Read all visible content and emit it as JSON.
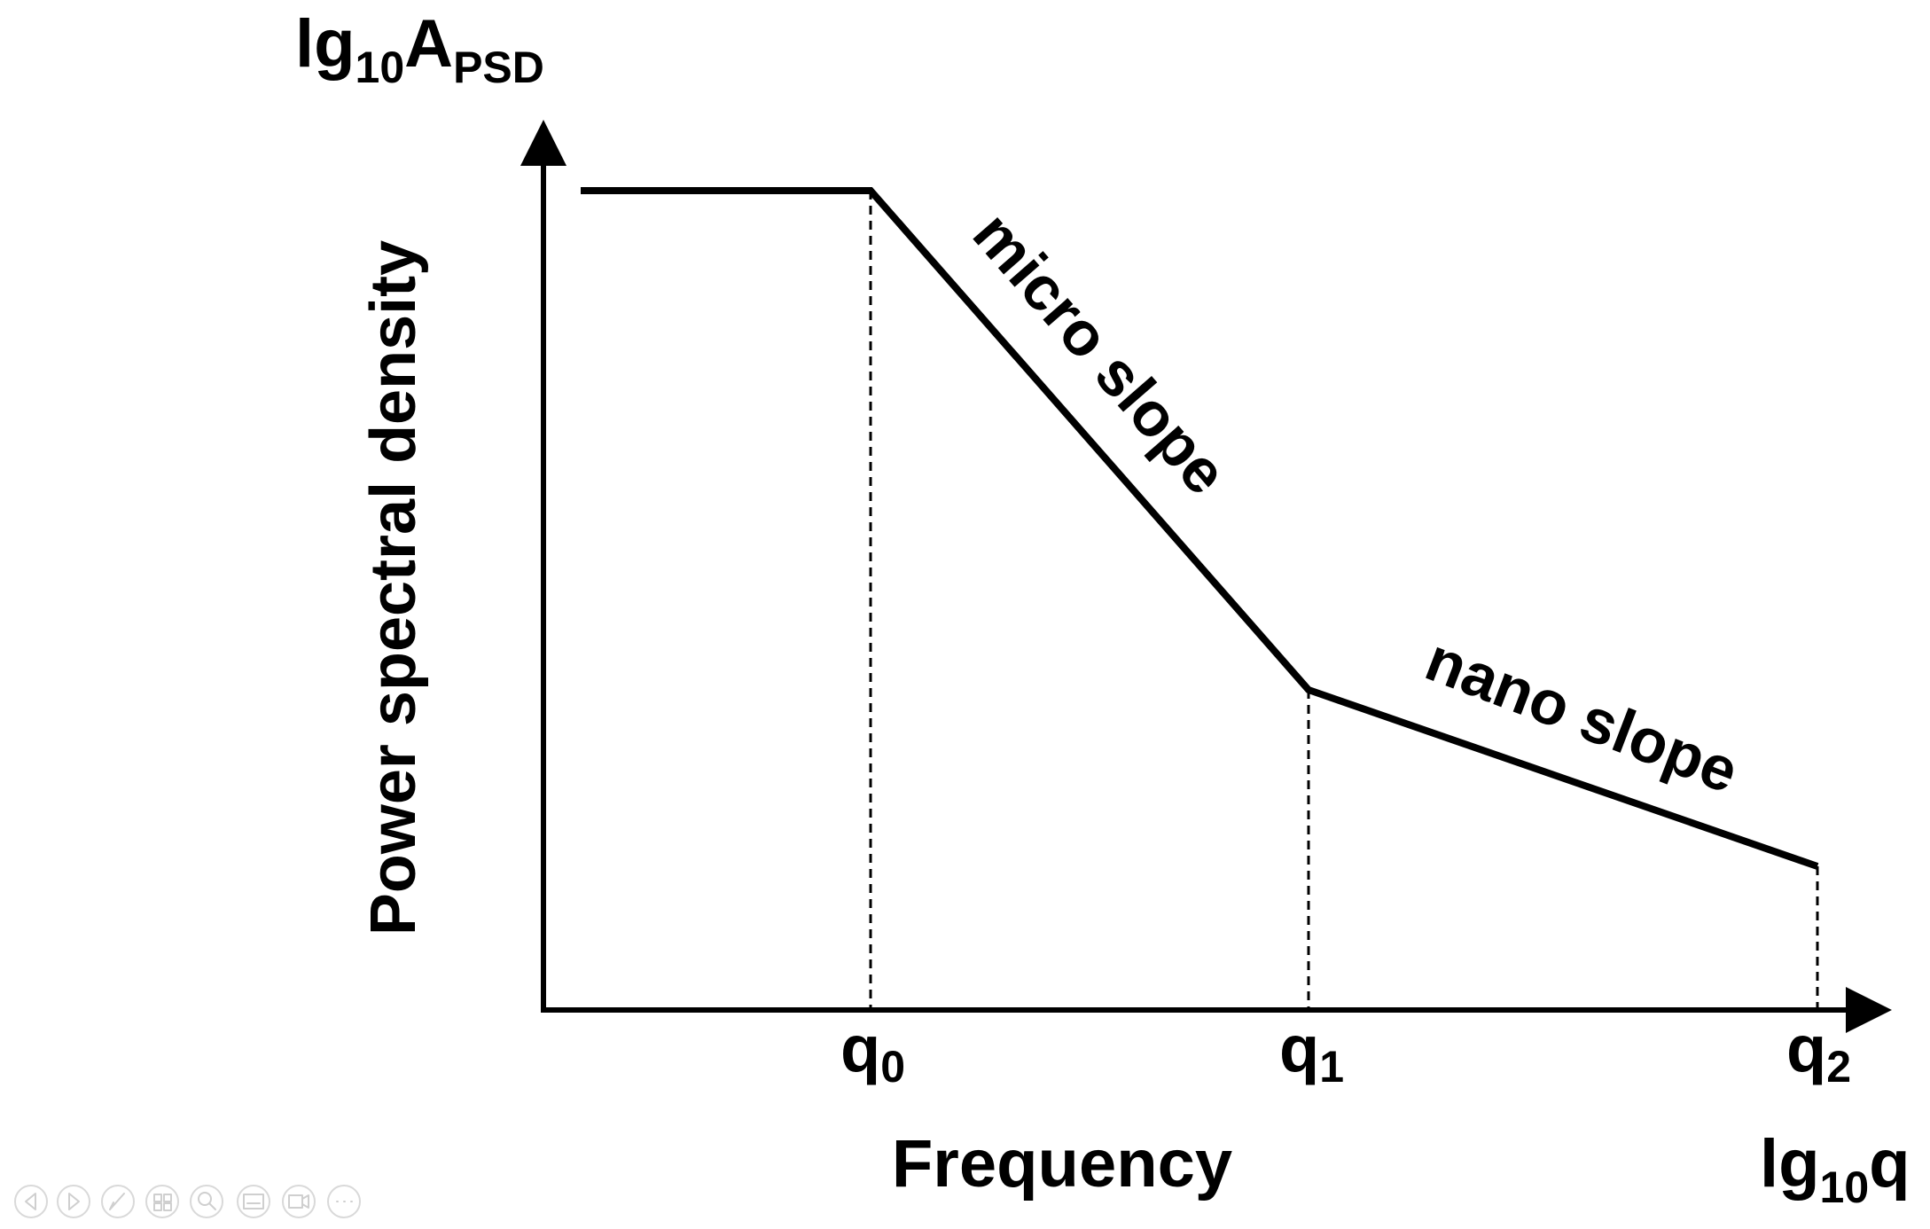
{
  "figure": {
    "y_axis_label": "Power spectral density",
    "y_axis_symbol": {
      "base": "lg",
      "sub": "10",
      "main": "A",
      "main_sub": "PSD"
    },
    "x_axis_label": "Frequency",
    "x_axis_symbol": {
      "base": "lg",
      "sub": "10",
      "main": "q"
    },
    "ticks": [
      {
        "main": "q",
        "sub": "0"
      },
      {
        "main": "q",
        "sub": "1"
      },
      {
        "main": "q",
        "sub": "2"
      }
    ],
    "segments": {
      "micro": "micro slope",
      "nano": "nano slope"
    },
    "line_color": "#000000"
  },
  "toolbar": {
    "buttons": [
      {
        "icon": "previous-slide-icon"
      },
      {
        "icon": "next-slide-icon"
      },
      {
        "icon": "pen-icon"
      },
      {
        "icon": "slides-overview-icon"
      },
      {
        "icon": "zoom-icon"
      },
      {
        "icon": "subtitles-icon"
      },
      {
        "icon": "camera-icon"
      },
      {
        "icon": "more-options-icon"
      }
    ]
  }
}
